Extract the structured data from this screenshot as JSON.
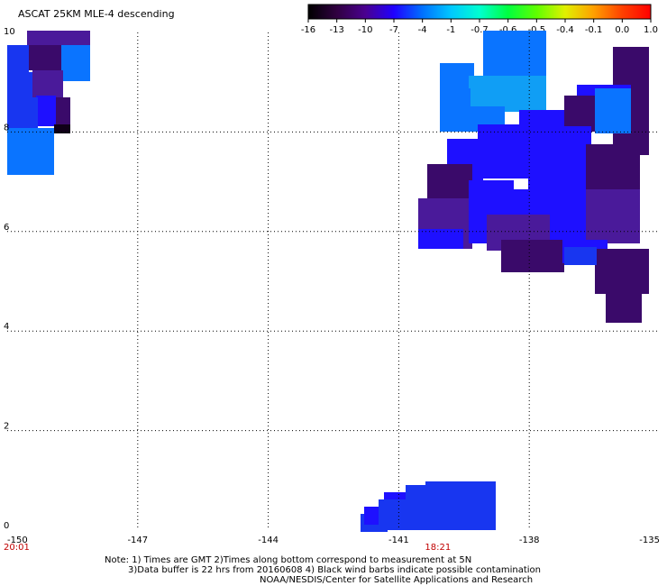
{
  "title": "ASCAT 25KM MLE-4 descending",
  "colorbar": {
    "tick_labels": [
      "-16",
      "-13",
      "-10",
      "-7",
      "-4",
      "-1",
      "-0.7",
      "-0.6",
      "-0.5",
      "-0.4",
      "-0.1",
      "0.0",
      "1.0"
    ],
    "colors": [
      "#000000",
      "#300040",
      "#4a0090",
      "#2000ff",
      "#0070ff",
      "#00c8ff",
      "#00ffd0",
      "#00ff40",
      "#60ff00",
      "#e0f000",
      "#ffa000",
      "#ff4000",
      "#ff0000"
    ]
  },
  "map": {
    "x_ticks": [
      "-150",
      "-147",
      "-144",
      "-141",
      "-138",
      "-135"
    ],
    "y_ticks": [
      "0",
      "2",
      "4",
      "6",
      "8",
      "10"
    ],
    "time_labels": [
      "20:01",
      "18:21"
    ],
    "cell_colors": {
      "dark_purple": "#3a0a6a",
      "purple": "#4a1a9a",
      "blue": "#1e10ff",
      "royal_blue": "#1836f0",
      "azure": "#0a74ff",
      "sky": "#109ef5",
      "black": "#100018"
    }
  },
  "notes": [
    "Note: 1) Times are GMT 2)Times along bottom correspond to measurement at 5N",
    "3)Data buffer is 22 hrs from 20160608 4) Black wind barbs indicate possible contamination",
    "NOAA/NESDIS/Center for Satellite Applications and Research"
  ]
}
